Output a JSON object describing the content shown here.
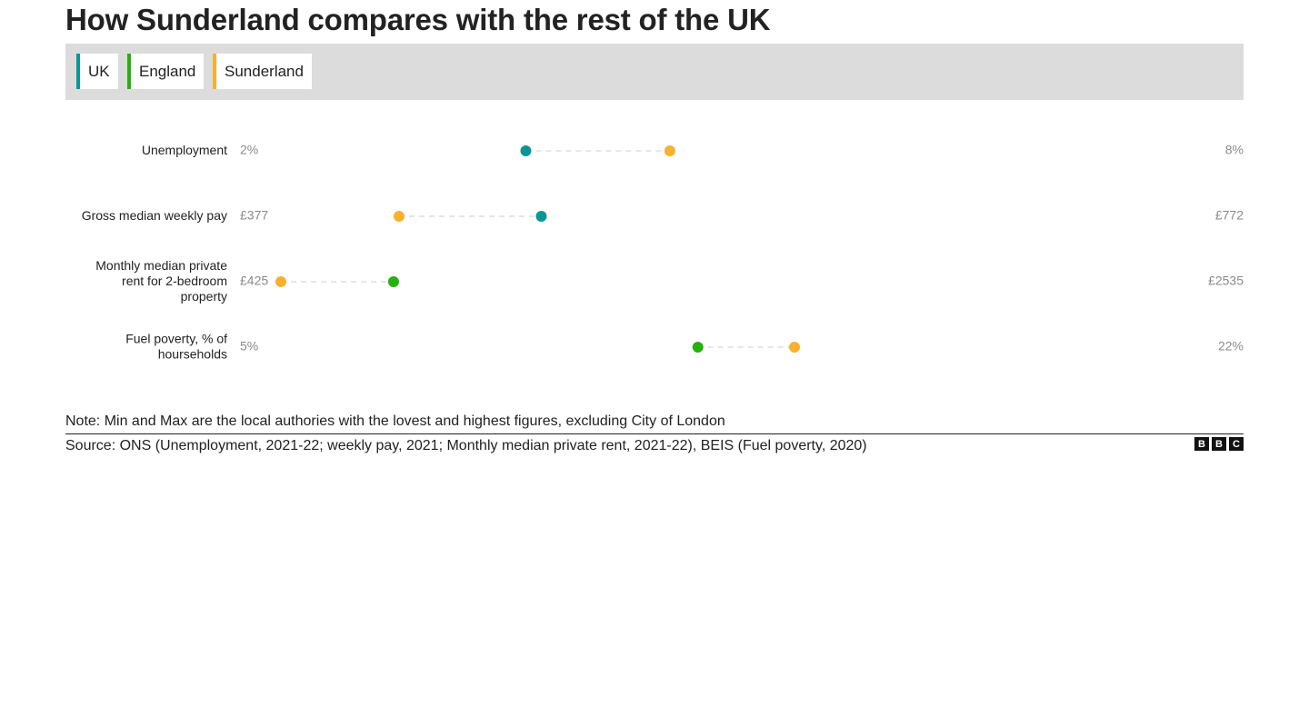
{
  "title": "How Sunderland compares with the rest of the UK",
  "legend": [
    {
      "label": "UK",
      "color": "#0b9696"
    },
    {
      "label": "England",
      "color": "#26b10f"
    },
    {
      "label": "Sunderland",
      "color": "#f8b02f"
    }
  ],
  "chart_data": {
    "type": "dot-range",
    "series": [
      {
        "name": "UK",
        "color": "#0b9696"
      },
      {
        "name": "England",
        "color": "#26b10f"
      },
      {
        "name": "Sunderland",
        "color": "#f8b02f"
      }
    ],
    "rows": [
      {
        "label": "Unemployment",
        "min": 2,
        "max": 8,
        "min_label": "2%",
        "max_label": "8%",
        "points": [
          {
            "series": "UK",
            "value": 3.7
          },
          {
            "series": "Sunderland",
            "value": 4.7
          }
        ]
      },
      {
        "label": "Gross median weekly pay",
        "min": 377,
        "max": 772,
        "min_label": "£377",
        "max_label": "£772",
        "points": [
          {
            "series": "Sunderland",
            "value": 431
          },
          {
            "series": "UK",
            "value": 496
          }
        ]
      },
      {
        "label": "Monthly median private rent for 2-bedroom property",
        "min": 425,
        "max": 2535,
        "min_label": "£425",
        "max_label": "£2535",
        "points": [
          {
            "series": "Sunderland",
            "value": 425
          },
          {
            "series": "England",
            "value": 700
          }
        ]
      },
      {
        "label": "Fuel poverty, % of hourseholds",
        "min": 5,
        "max": 22,
        "min_label": "5%",
        "max_label": "22%",
        "points": [
          {
            "series": "England",
            "value": 13.2
          },
          {
            "series": "Sunderland",
            "value": 15.1
          }
        ]
      }
    ]
  },
  "note": "Note: Min and Max are the local authories with the lovest and highest figures, excluding City of London",
  "source": "Source: ONS (Unemployment, 2021-22; weekly pay, 2021; Monthly median private rent, 2021-22), BEIS (Fuel poverty, 2020)",
  "logo": [
    "B",
    "B",
    "C"
  ]
}
